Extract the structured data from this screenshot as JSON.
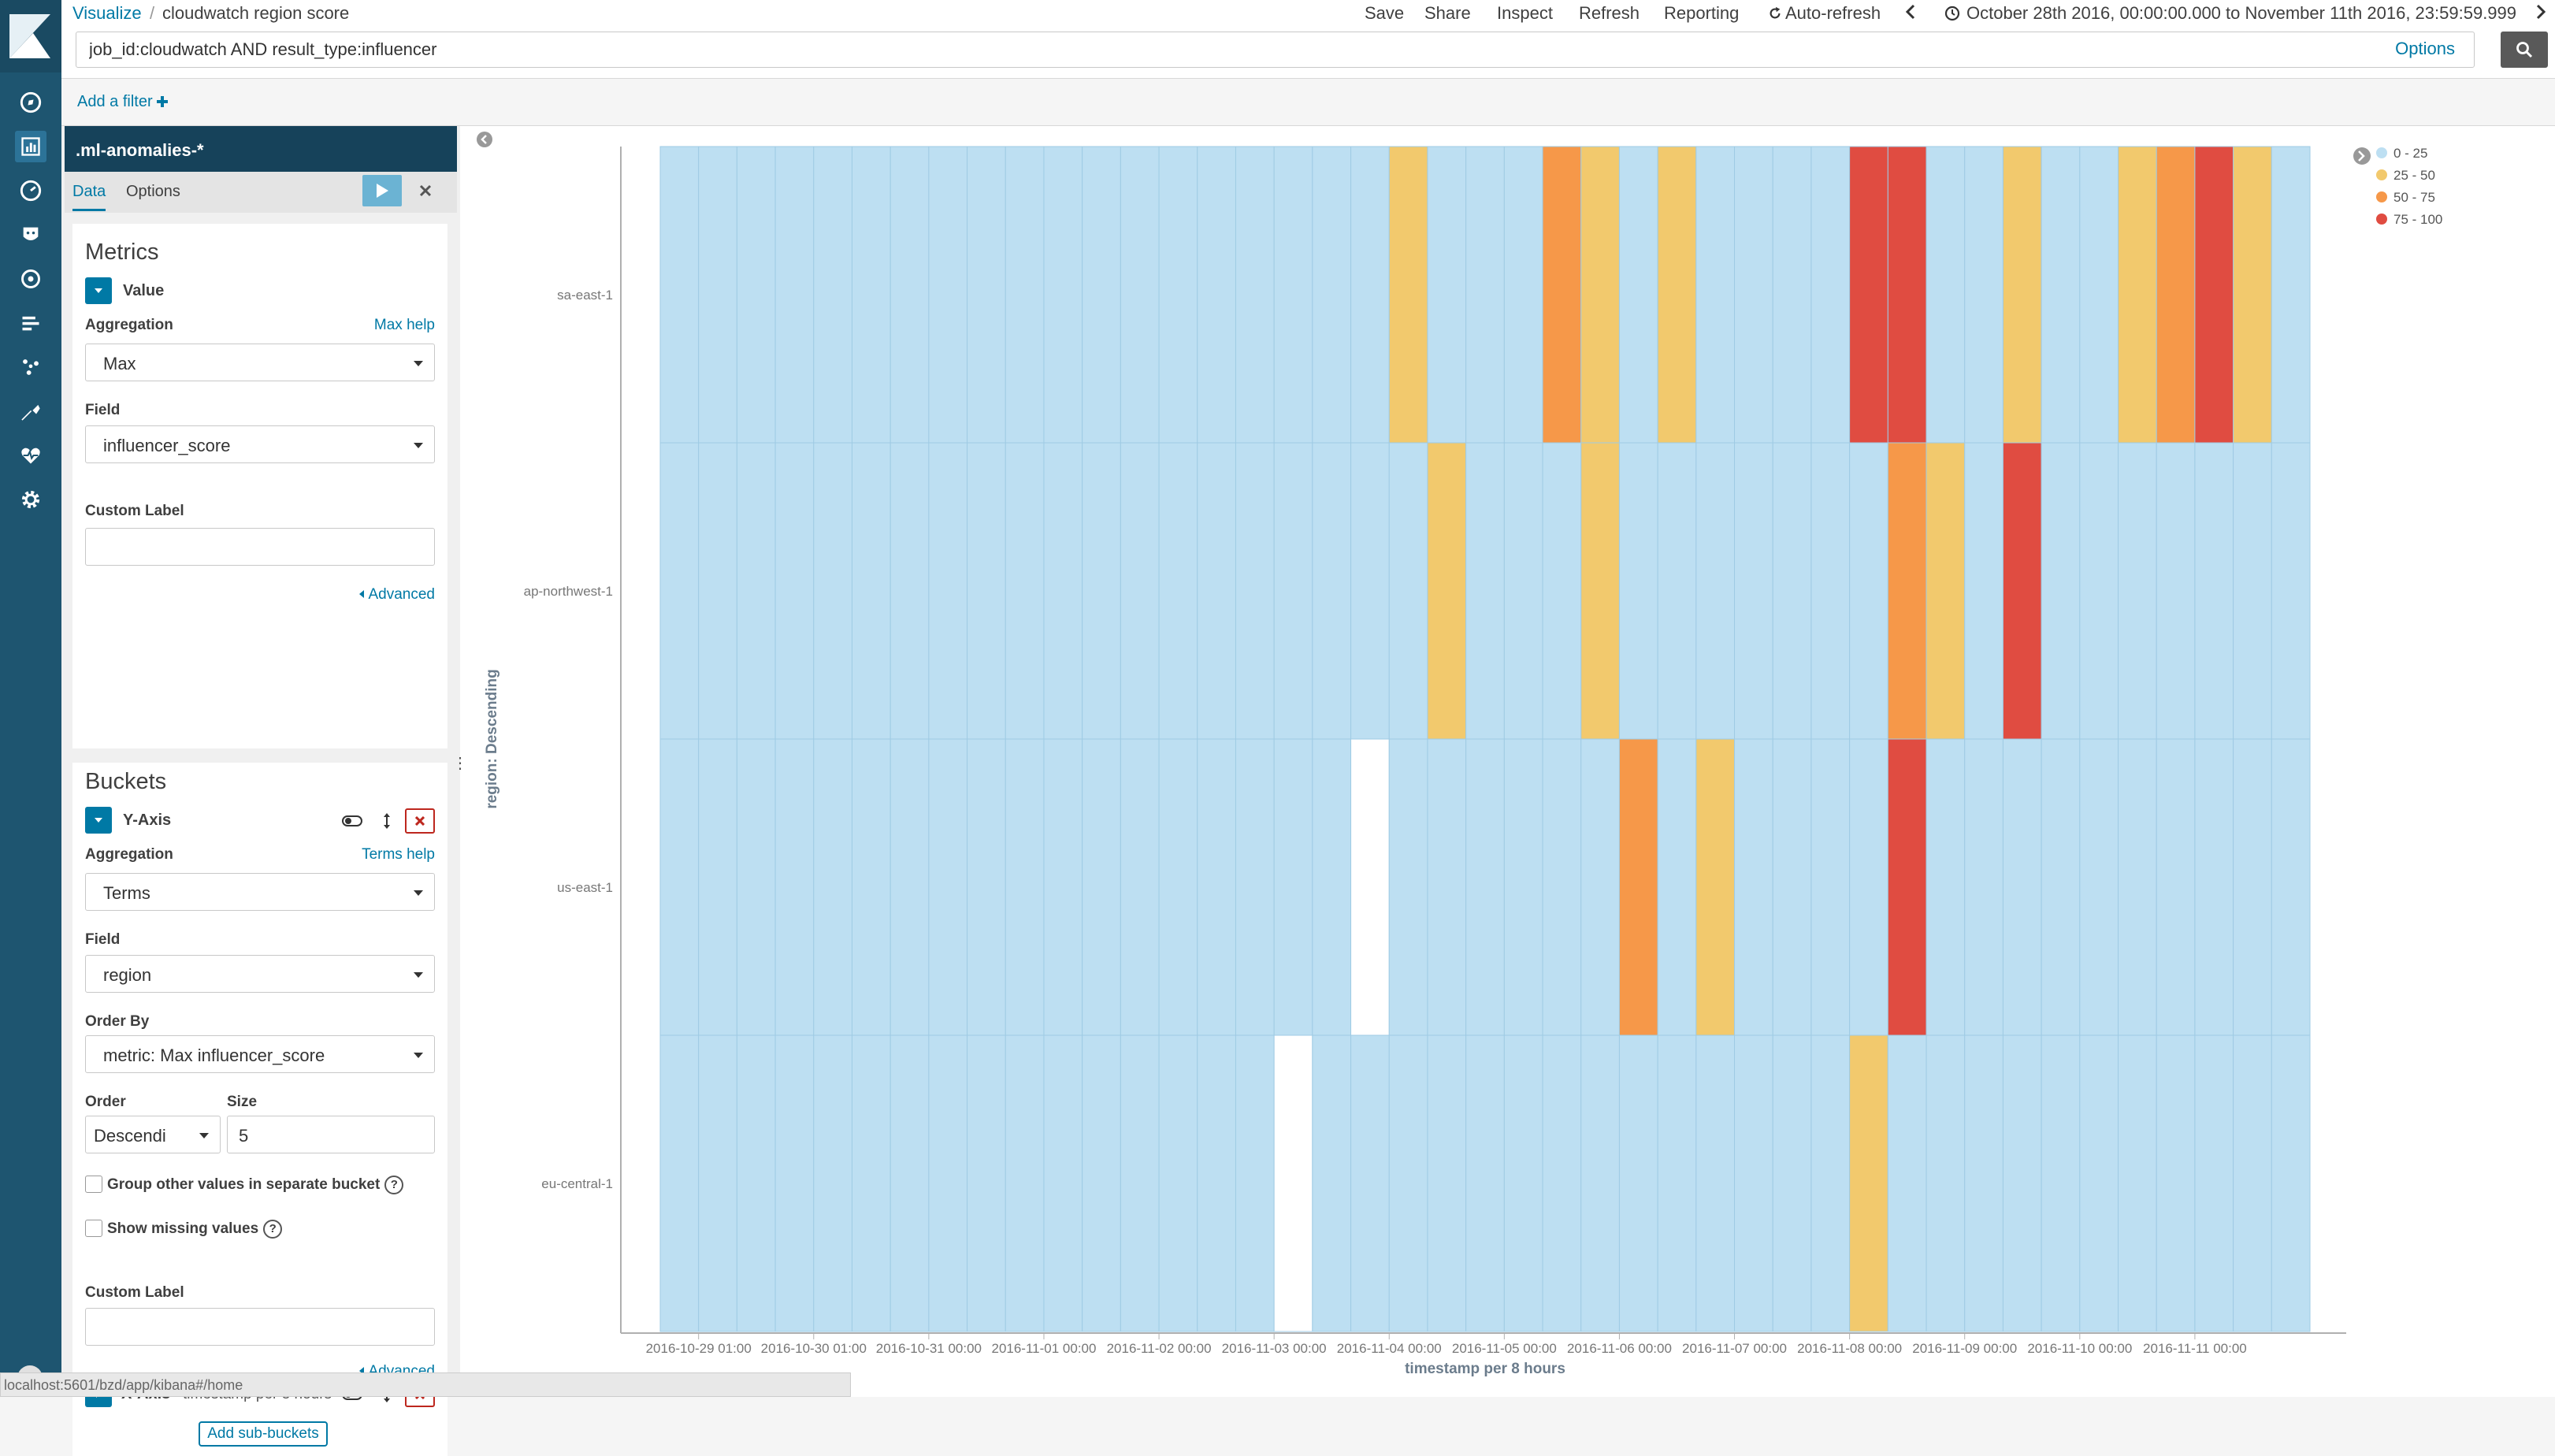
{
  "breadcrumb": {
    "app": "Visualize",
    "separator": "/",
    "title": "cloudwatch region score"
  },
  "top_menu": {
    "save": "Save",
    "share": "Share",
    "inspect": "Inspect",
    "refresh": "Refresh",
    "reporting": "Reporting",
    "auto_refresh": "Auto-refresh",
    "time_range": "October 28th 2016, 00:00:00.000 to November 11th 2016, 23:59:59.999"
  },
  "query": {
    "value": "job_id:cloudwatch AND result_type:influencer",
    "options_label": "Options"
  },
  "filter_bar": {
    "add_filter": "Add a filter"
  },
  "sidebar": {
    "index_pattern": ".ml-anomalies-*",
    "tabs": [
      "Data",
      "Options"
    ],
    "metrics": {
      "title": "Metrics",
      "agg_name": "Value",
      "aggregation_label": "Aggregation",
      "aggregation_help": "Max help",
      "aggregation_value": "Max",
      "field_label": "Field",
      "field_value": "influencer_score",
      "custom_label": "Custom Label",
      "custom_value": "",
      "advanced": "Advanced"
    },
    "buckets": {
      "title": "Buckets",
      "yaxis_name": "Y-Axis",
      "aggregation_label": "Aggregation",
      "aggregation_help": "Terms help",
      "aggregation_value": "Terms",
      "field_label": "Field",
      "field_value": "region",
      "order_by_label": "Order By",
      "order_by_value": "metric: Max influencer_score",
      "order_label": "Order",
      "order_value": "Descendi",
      "size_label": "Size",
      "size_value": "5",
      "group_other": "Group other values in separate bucket",
      "show_missing": "Show missing values",
      "custom_label": "Custom Label",
      "custom_value": "",
      "advanced": "Advanced",
      "xaxis_name": "X-Axis",
      "xaxis_desc": "timestamp per 8 hours",
      "add_subbuckets": "Add sub-buckets"
    }
  },
  "status_url": "localhost:5601/bzd/app/kibana#/home",
  "colors": {
    "nav_bg": "#1e5570",
    "accent": "#0079a5",
    "index_header": "#16425a",
    "c0": "#bddff2",
    "c1": "#f2c96d",
    "c2": "#f69849",
    "c3": "#e04c41",
    "grid": "#9fcbe4"
  },
  "chart_data": {
    "type": "heatmap",
    "xlabel": "timestamp per 8 hours",
    "ylabel": "region: Descending",
    "rows": [
      "sa-east-1",
      "ap-northwest-1",
      "us-east-1",
      "eu-central-1"
    ],
    "columns": 43,
    "x_ticks": [
      {
        "col": 1,
        "label": "2016-10-29 01:00"
      },
      {
        "col": 4,
        "label": "2016-10-30 01:00"
      },
      {
        "col": 7,
        "label": "2016-10-31 00:00"
      },
      {
        "col": 10,
        "label": "2016-11-01 00:00"
      },
      {
        "col": 13,
        "label": "2016-11-02 00:00"
      },
      {
        "col": 16,
        "label": "2016-11-03 00:00"
      },
      {
        "col": 19,
        "label": "2016-11-04 00:00"
      },
      {
        "col": 22,
        "label": "2016-11-05 00:00"
      },
      {
        "col": 25,
        "label": "2016-11-06 00:00"
      },
      {
        "col": 28,
        "label": "2016-11-07 00:00"
      },
      {
        "col": 31,
        "label": "2016-11-08 00:00"
      },
      {
        "col": 34,
        "label": "2016-11-09 00:00"
      },
      {
        "col": 37,
        "label": "2016-11-10 00:00"
      },
      {
        "col": 40,
        "label": "2016-11-11 00:00"
      }
    ],
    "legend": [
      {
        "label": "0 - 25",
        "color": "#bddff2"
      },
      {
        "label": "25 - 50",
        "color": "#f2c96d"
      },
      {
        "label": "50 - 75",
        "color": "#f69849"
      },
      {
        "label": "75 - 100",
        "color": "#e04c41"
      }
    ],
    "legend_position": "top-right",
    "bins": [
      [
        0,
        0,
        0,
        0,
        0,
        0,
        0,
        0,
        0,
        0,
        0,
        0,
        0,
        0,
        0,
        0,
        0,
        0,
        0,
        1,
        0,
        0,
        0,
        2,
        1,
        0,
        1,
        0,
        0,
        0,
        0,
        3,
        3,
        0,
        0,
        1,
        0,
        0,
        1,
        2,
        3,
        1,
        0
      ],
      [
        0,
        0,
        0,
        0,
        0,
        0,
        0,
        0,
        0,
        0,
        0,
        0,
        0,
        0,
        0,
        0,
        0,
        0,
        0,
        0,
        1,
        0,
        0,
        0,
        1,
        0,
        0,
        0,
        0,
        0,
        0,
        0,
        2,
        1,
        0,
        3,
        0,
        0,
        0,
        0,
        0,
        0,
        0
      ],
      [
        0,
        0,
        0,
        0,
        0,
        0,
        0,
        0,
        0,
        0,
        0,
        0,
        0,
        0,
        0,
        0,
        0,
        0,
        -1,
        0,
        0,
        0,
        0,
        0,
        0,
        2,
        0,
        1,
        0,
        0,
        0,
        0,
        3,
        0,
        0,
        0,
        0,
        0,
        0,
        0,
        0,
        0,
        0
      ],
      [
        0,
        0,
        0,
        0,
        0,
        0,
        0,
        0,
        0,
        0,
        0,
        0,
        0,
        0,
        0,
        0,
        -1,
        0,
        0,
        0,
        0,
        0,
        0,
        0,
        0,
        0,
        0,
        0,
        0,
        0,
        0,
        1,
        0,
        0,
        0,
        0,
        0,
        0,
        0,
        0,
        0,
        0,
        0
      ]
    ],
    "bin_note": "-1 = no data"
  }
}
